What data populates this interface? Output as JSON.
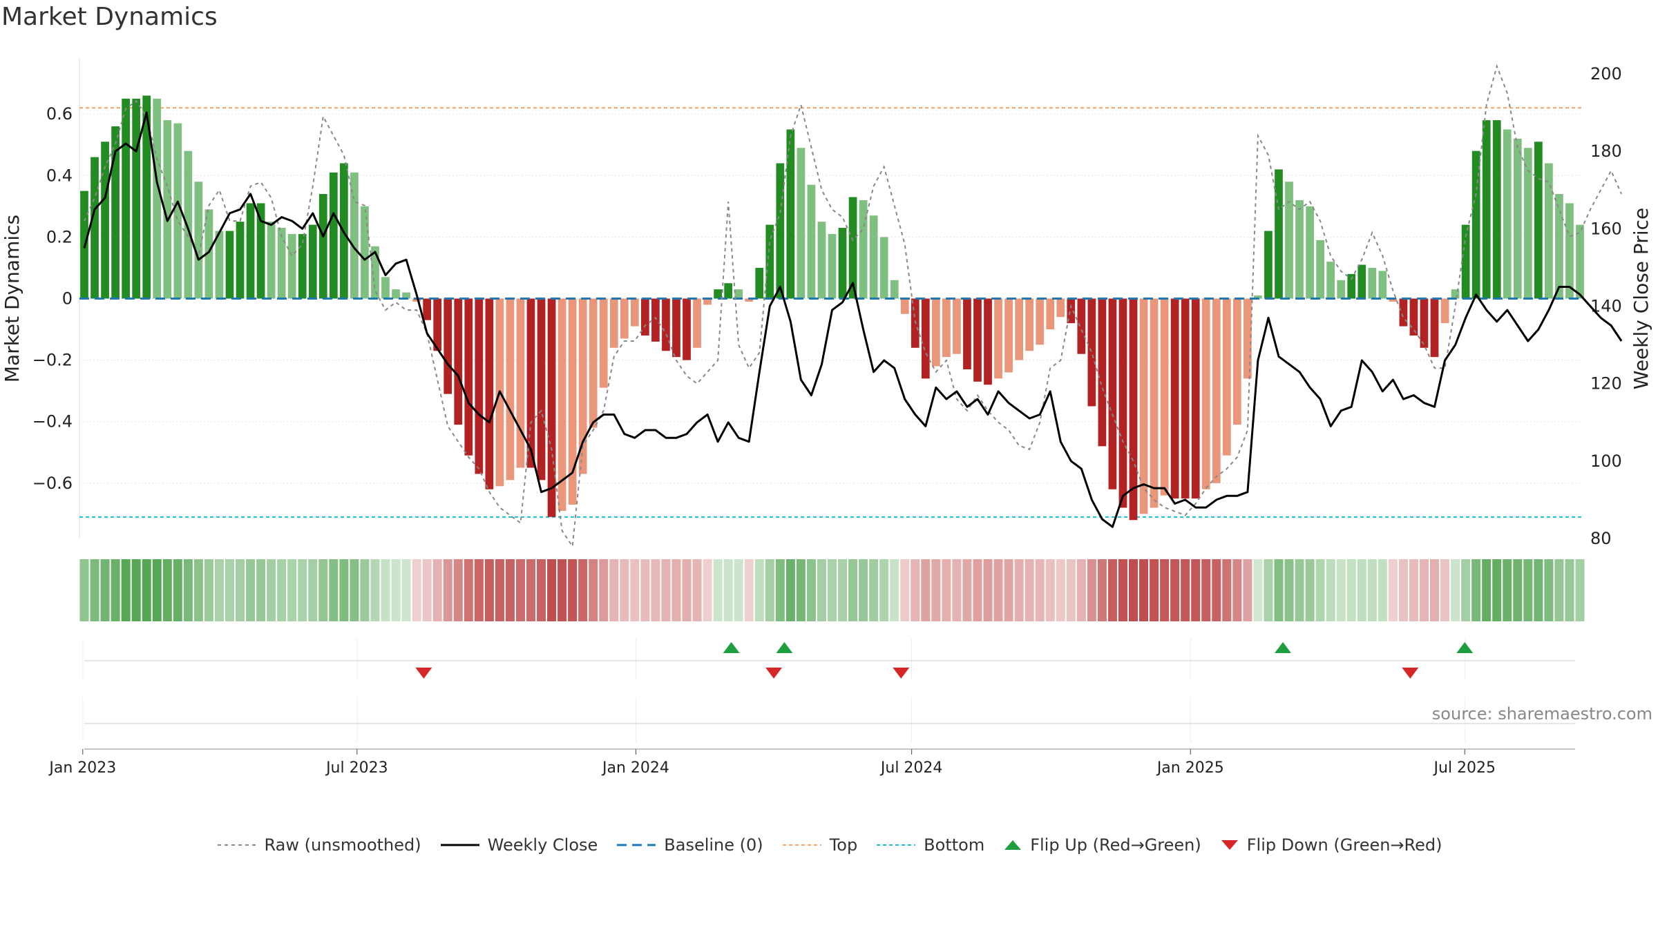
{
  "title": "Market Dynamics",
  "source": "source: sharemaestro.com",
  "colors": {
    "strong_green": "#228b22",
    "light_green": "#7fbf7f",
    "strong_red": "#b22222",
    "light_red": "#e9967a",
    "raw": "#888888",
    "close": "#000000",
    "baseline": "#1f77b4",
    "top": "#f4a460",
    "bottom": "#17becf",
    "flip_up": "#1e9e3e",
    "flip_down": "#d62728"
  },
  "legend": [
    {
      "label": "Raw (unsmoothed)",
      "kind": "line",
      "color": "#888888",
      "dash": "5,5",
      "width": 2
    },
    {
      "label": "Weekly Close",
      "kind": "line",
      "color": "#000000",
      "dash": "",
      "width": 3
    },
    {
      "label": "Baseline (0)",
      "kind": "line",
      "color": "#1f77b4",
      "dash": "14,8",
      "width": 3
    },
    {
      "label": "Top",
      "kind": "line",
      "color": "#f4a460",
      "dash": "5,4",
      "width": 2
    },
    {
      "label": "Bottom",
      "kind": "line",
      "color": "#17becf",
      "dash": "5,4",
      "width": 2
    },
    {
      "label": "Flip Up (Red→Green)",
      "kind": "tri-up",
      "color": "#1e9e3e"
    },
    {
      "label": "Flip Down (Green→Red)",
      "kind": "tri-down",
      "color": "#d62728"
    }
  ],
  "chart_data": {
    "type": "bar",
    "title": "Market Dynamics",
    "x_start": "2023-01-02",
    "x_end": "2025-09-15",
    "xticks": [
      "Jan 2023",
      "Jul 2023",
      "Jan 2024",
      "Jul 2024",
      "Jan 2025",
      "Jul 2025"
    ],
    "xtick_dates": [
      "2023-01-01",
      "2023-07-01",
      "2024-01-01",
      "2024-07-01",
      "2025-01-01",
      "2025-07-01"
    ],
    "ylabel_left": "Market Dynamics",
    "ylabel_right": "Weekly Close Price",
    "ylim_left": [
      -0.78,
      0.78
    ],
    "yticks_left": [
      0.6,
      0.4,
      0.2,
      0,
      -0.2,
      -0.4,
      -0.6
    ],
    "ytick_labels_left": [
      "0.6",
      "0.4",
      "0.2",
      "0",
      "−0.2",
      "−0.4",
      "−0.6"
    ],
    "ylim_right": [
      80,
      200
    ],
    "yticks_right": [
      200,
      180,
      160,
      140,
      120,
      100,
      80
    ],
    "top_level": 0.62,
    "bottom_level": -0.71,
    "baseline": 0,
    "dynamics": [
      0.35,
      0.46,
      0.51,
      0.56,
      0.65,
      0.65,
      0.66,
      0.65,
      0.58,
      0.57,
      0.48,
      0.38,
      0.29,
      0.22,
      0.22,
      0.25,
      0.31,
      0.31,
      0.25,
      0.23,
      0.21,
      0.21,
      0.24,
      0.34,
      0.41,
      0.44,
      0.41,
      0.3,
      0.17,
      0.07,
      0.03,
      0.02,
      -0.01,
      -0.07,
      -0.17,
      -0.31,
      -0.41,
      -0.51,
      -0.57,
      -0.62,
      -0.61,
      -0.59,
      -0.55,
      -0.55,
      -0.59,
      -0.71,
      -0.69,
      -0.67,
      -0.57,
      -0.42,
      -0.29,
      -0.16,
      -0.13,
      -0.09,
      -0.12,
      -0.14,
      -0.17,
      -0.19,
      -0.2,
      -0.16,
      -0.02,
      0.03,
      0.05,
      0.03,
      -0.01,
      0.1,
      0.24,
      0.44,
      0.55,
      0.49,
      0.37,
      0.25,
      0.21,
      0.23,
      0.33,
      0.32,
      0.27,
      0.2,
      0.06,
      -0.05,
      -0.16,
      -0.26,
      -0.22,
      -0.19,
      -0.18,
      -0.23,
      -0.27,
      -0.28,
      -0.26,
      -0.24,
      -0.2,
      -0.17,
      -0.15,
      -0.1,
      -0.06,
      -0.08,
      -0.18,
      -0.35,
      -0.48,
      -0.62,
      -0.68,
      -0.72,
      -0.7,
      -0.68,
      -0.64,
      -0.65,
      -0.65,
      -0.65,
      -0.62,
      -0.6,
      -0.51,
      -0.41,
      -0.26,
      0.01,
      0.22,
      0.42,
      0.38,
      0.32,
      0.3,
      0.19,
      0.12,
      0.06,
      0.08,
      0.11,
      0.1,
      0.09,
      -0.01,
      -0.09,
      -0.12,
      -0.16,
      -0.19,
      -0.08,
      0.03,
      0.24,
      0.48,
      0.58,
      0.58,
      0.55,
      0.52,
      0.49,
      0.51,
      0.44,
      0.34,
      0.31,
      0.24
    ],
    "weekly_close": [
      155,
      165,
      168,
      180,
      182,
      180,
      190,
      172,
      162,
      167,
      160,
      152,
      154,
      159,
      164,
      165,
      169,
      162,
      161,
      163,
      162,
      160,
      164,
      158,
      164,
      159,
      155,
      152,
      154,
      148,
      151,
      152,
      143,
      133,
      129,
      125,
      122,
      115,
      112,
      110,
      118,
      113,
      108,
      103,
      92,
      93,
      95,
      97,
      105,
      110,
      112,
      112,
      107,
      106,
      108,
      108,
      106,
      106,
      107,
      110,
      112,
      105,
      110,
      106,
      105,
      123,
      140,
      145,
      136,
      121,
      117,
      125,
      139,
      141,
      146,
      134,
      123,
      126,
      124,
      116,
      112,
      109,
      119,
      116,
      118,
      114,
      116,
      112,
      118,
      115,
      113,
      111,
      112,
      118,
      105,
      100,
      98,
      90,
      85,
      83,
      91,
      93,
      94,
      93,
      93,
      89,
      90,
      88,
      88,
      90,
      91,
      91,
      92,
      126,
      137,
      127,
      125,
      123,
      119,
      116,
      109,
      113,
      114,
      126,
      123,
      118,
      121,
      116,
      117,
      115,
      114,
      126,
      130,
      137,
      143,
      139,
      136,
      139,
      135,
      131,
      134,
      139,
      145,
      145,
      143,
      140,
      137,
      135,
      131
    ],
    "raw": [
      162,
      168,
      176,
      182,
      191,
      193,
      189,
      178,
      171,
      162,
      158,
      153,
      166,
      170,
      162,
      162,
      171,
      172,
      168,
      158,
      153,
      156,
      171,
      189,
      184,
      179,
      167,
      166,
      144,
      139,
      141,
      139,
      139,
      133,
      121,
      109,
      105,
      101,
      98,
      92,
      88,
      86,
      84,
      110,
      113,
      103,
      82,
      78,
      104,
      108,
      113,
      127,
      131,
      131,
      135,
      137,
      133,
      126,
      122,
      120,
      123,
      126,
      167,
      130,
      124,
      128,
      157,
      164,
      184,
      192,
      181,
      170,
      165,
      163,
      157,
      160,
      171,
      176,
      166,
      156,
      136,
      128,
      123,
      126,
      116,
      113,
      117,
      113,
      110,
      108,
      104,
      103,
      110,
      124,
      126,
      140,
      134,
      128,
      119,
      112,
      105,
      100,
      93,
      90,
      88,
      87,
      86,
      89,
      93,
      96,
      98,
      101,
      108,
      184,
      179,
      165,
      167,
      165,
      167,
      162,
      153,
      149,
      147,
      152,
      159,
      153,
      144,
      137,
      134,
      130,
      124,
      124,
      140,
      158,
      169,
      192,
      202,
      195,
      181,
      175,
      173,
      172,
      165,
      158,
      159,
      165,
      170,
      175,
      169
    ],
    "regime_band": "green-red weekly regime strip, shade matches dynamics sign and strength",
    "flip_up_dates": [
      "2024-03-04",
      "2024-04-08",
      "2025-03-03",
      "2025-07-01"
    ],
    "flip_down_dates": [
      "2023-08-14",
      "2024-04-01",
      "2024-06-24",
      "2025-05-26"
    ]
  }
}
